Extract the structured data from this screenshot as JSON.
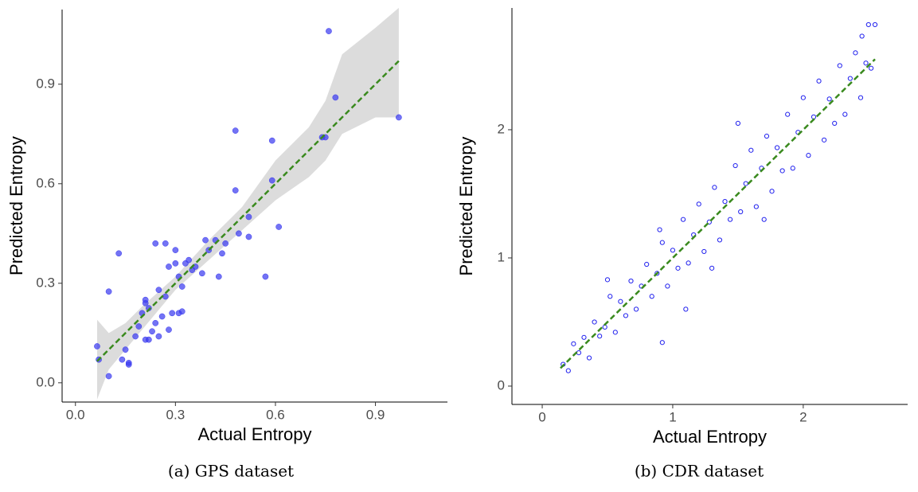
{
  "chart_data": [
    {
      "type": "scatter",
      "caption": "(a) GPS dataset",
      "x_label": "Actual Entropy",
      "y_label": "Predicted Entropy",
      "marker": "filled",
      "color": "#3838f0",
      "x": [
        0.065,
        0.07,
        0.1,
        0.1,
        0.13,
        0.14,
        0.15,
        0.16,
        0.16,
        0.18,
        0.19,
        0.2,
        0.21,
        0.21,
        0.21,
        0.22,
        0.22,
        0.23,
        0.24,
        0.24,
        0.25,
        0.25,
        0.26,
        0.27,
        0.27,
        0.28,
        0.28,
        0.29,
        0.3,
        0.3,
        0.31,
        0.31,
        0.32,
        0.32,
        0.33,
        0.34,
        0.35,
        0.36,
        0.38,
        0.39,
        0.4,
        0.42,
        0.43,
        0.44,
        0.45,
        0.48,
        0.48,
        0.49,
        0.52,
        0.52,
        0.57,
        0.59,
        0.59,
        0.61,
        0.74,
        0.75,
        0.76,
        0.78,
        0.97
      ],
      "y": [
        0.11,
        0.07,
        0.02,
        0.275,
        0.39,
        0.07,
        0.1,
        0.055,
        0.06,
        0.14,
        0.17,
        0.21,
        0.25,
        0.24,
        0.13,
        0.225,
        0.13,
        0.155,
        0.42,
        0.18,
        0.28,
        0.14,
        0.2,
        0.42,
        0.26,
        0.16,
        0.35,
        0.21,
        0.4,
        0.36,
        0.32,
        0.21,
        0.215,
        0.29,
        0.36,
        0.37,
        0.34,
        0.35,
        0.33,
        0.43,
        0.4,
        0.43,
        0.32,
        0.39,
        0.42,
        0.76,
        0.58,
        0.45,
        0.5,
        0.44,
        0.32,
        0.73,
        0.61,
        0.47,
        0.74,
        0.74,
        1.06,
        0.86,
        0.8
      ],
      "fit": {
        "x": [
          0.065,
          0.97
        ],
        "y": [
          0.065,
          0.97
        ],
        "color": "#3a8a1e"
      },
      "band": {
        "x": [
          0.065,
          0.1,
          0.15,
          0.2,
          0.3,
          0.4,
          0.5,
          0.6,
          0.7,
          0.75,
          0.8,
          0.9,
          0.97
        ],
        "lower": [
          -0.05,
          0.04,
          0.1,
          0.16,
          0.28,
          0.37,
          0.46,
          0.55,
          0.62,
          0.67,
          0.75,
          0.8,
          0.8
        ],
        "upper": [
          0.19,
          0.15,
          0.18,
          0.23,
          0.32,
          0.43,
          0.53,
          0.67,
          0.77,
          0.85,
          0.99,
          1.07,
          1.13
        ],
        "color": "#dcdcdc"
      },
      "xlim": [
        -0.04,
        1.116
      ],
      "ylim": [
        -0.058,
        1.125
      ],
      "xticks": [
        {
          "value": 0,
          "label": "0.0"
        },
        {
          "value": 0.3,
          "label": "0.3"
        },
        {
          "value": 0.6,
          "label": "0.6"
        },
        {
          "value": 0.9,
          "label": "0.9"
        }
      ],
      "yticks": [
        {
          "value": 0,
          "label": "0.0"
        },
        {
          "value": 0.3,
          "label": "0.3"
        },
        {
          "value": 0.6,
          "label": "0.6"
        },
        {
          "value": 0.9,
          "label": "0.9"
        }
      ]
    },
    {
      "type": "scatter",
      "caption": "(b) CDR dataset",
      "x_label": "Actual Entropy",
      "y_label": "Predicted Entropy",
      "marker": "hollow",
      "color": "#2020ee",
      "x": [
        0.16,
        0.2,
        0.24,
        0.28,
        0.32,
        0.36,
        0.4,
        0.44,
        0.48,
        0.52,
        0.56,
        0.6,
        0.64,
        0.68,
        0.72,
        0.76,
        0.8,
        0.84,
        0.88,
        0.92,
        0.96,
        1.0,
        1.04,
        1.08,
        1.12,
        1.16,
        1.2,
        1.24,
        1.28,
        1.32,
        1.36,
        1.4,
        1.44,
        1.48,
        1.52,
        1.56,
        1.6,
        1.64,
        1.68,
        1.72,
        1.76,
        1.8,
        1.84,
        1.88,
        1.92,
        1.96,
        2.0,
        2.04,
        2.08,
        2.12,
        2.16,
        2.2,
        2.24,
        2.28,
        2.32,
        2.36,
        2.4,
        2.44,
        2.48,
        2.52,
        0.92,
        2.5,
        2.55,
        2.45,
        0.9,
        1.3,
        1.5,
        1.1,
        1.7,
        0.5
      ],
      "y": [
        0.17,
        0.12,
        0.33,
        0.26,
        0.38,
        0.22,
        0.5,
        0.39,
        0.46,
        0.7,
        0.42,
        0.66,
        0.55,
        0.82,
        0.6,
        0.78,
        0.95,
        0.7,
        0.88,
        1.12,
        0.78,
        1.06,
        0.92,
        1.3,
        0.96,
        1.18,
        1.42,
        1.05,
        1.28,
        1.55,
        1.14,
        1.44,
        1.3,
        1.72,
        1.36,
        1.58,
        1.84,
        1.4,
        1.7,
        1.95,
        1.52,
        1.86,
        1.68,
        2.12,
        1.7,
        1.98,
        2.25,
        1.8,
        2.1,
        2.38,
        1.92,
        2.24,
        2.05,
        2.5,
        2.12,
        2.4,
        2.6,
        2.25,
        2.52,
        2.48,
        0.34,
        2.82,
        2.82,
        2.73,
        1.22,
        0.92,
        2.05,
        0.6,
        1.3,
        0.83
      ],
      "fit": {
        "x": [
          0.14,
          2.55
        ],
        "y": [
          0.14,
          2.55
        ],
        "color": "#3a8a1e"
      },
      "xlim": [
        -0.232,
        2.8
      ],
      "ylim": [
        -0.143,
        2.95
      ],
      "xticks": [
        0,
        1,
        2
      ],
      "yticks": [
        0,
        1,
        2
      ]
    }
  ]
}
